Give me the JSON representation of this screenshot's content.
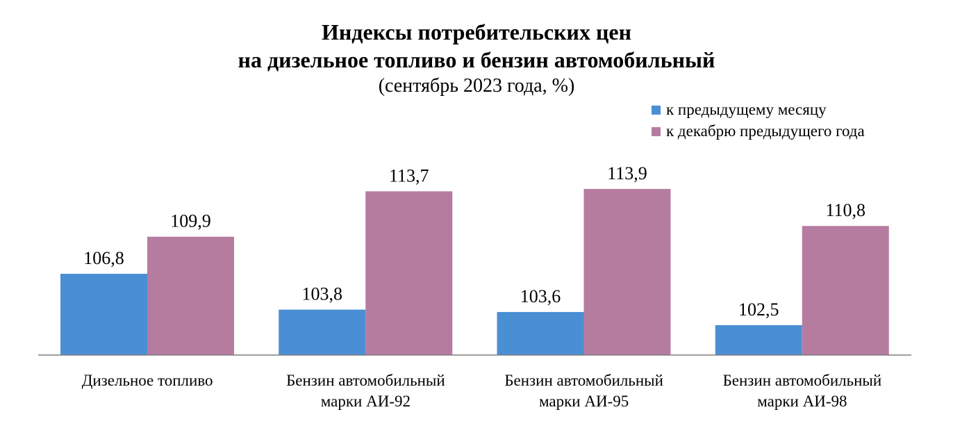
{
  "chart_data": {
    "type": "bar",
    "title": "Индексы потребительских цен",
    "title_line2": "на дизельное топливо и бензин автомобильный",
    "subtitle": "(сентябрь 2023 года, %)",
    "categories": [
      [
        "Дизельное топливо"
      ],
      [
        "Бензин автомобильный",
        "марки АИ-92"
      ],
      [
        "Бензин автомобильный",
        "марки АИ-95"
      ],
      [
        "Бензин автомобильный",
        "марки АИ-98"
      ]
    ],
    "series": [
      {
        "name": "к предыдущему месяцу",
        "color": "#4a8fd4",
        "values": [
          106.8,
          103.8,
          103.6,
          102.5
        ],
        "labels": [
          "106,8",
          "103,8",
          "103,6",
          "102,5"
        ]
      },
      {
        "name": "к декабрю предыдущего года",
        "color": "#b67ca0",
        "values": [
          109.9,
          113.7,
          113.9,
          110.8
        ],
        "labels": [
          "109,9",
          "113,7",
          "113,9",
          "110,8"
        ]
      }
    ],
    "ylim": [
      100,
      116
    ],
    "grid": false,
    "legend": "top-right",
    "xlabel": "",
    "ylabel": ""
  }
}
